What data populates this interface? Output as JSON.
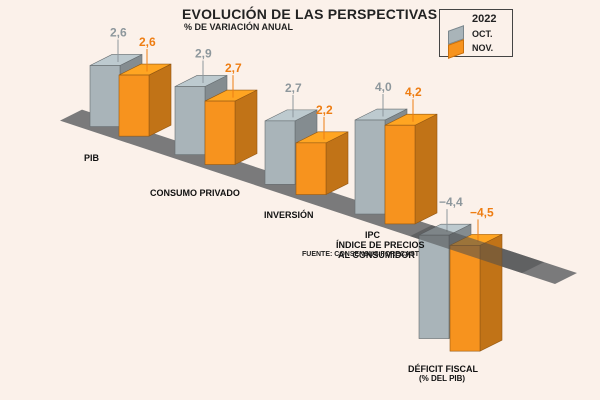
{
  "title": "EVOLUCIÓN DE LAS PERSPECTIVAS",
  "subtitle": "% DE VARIACIÓN ANUAL",
  "legend": {
    "year": "2022",
    "oct": "OCT.",
    "nov": "NOV."
  },
  "source": "FUENTE: CONSENSUS FORECAST",
  "colors": {
    "oct": "#a9b4b9",
    "nov": "#f7931e",
    "oct_label": "#8d979c",
    "nov_label": "#ee7d12",
    "background": "#fbf1ea"
  },
  "chart_data": {
    "type": "bar",
    "title": "EVOLUCIÓN DE LAS PERSPECTIVAS",
    "subtitle": "% DE VARIACIÓN ANUAL",
    "categories": [
      "PIB",
      "CONSUMO PRIVADO",
      "INVERSIÓN",
      "IPC ÍNDICE DE PRECIOS AL CONSUMIDOR",
      "DÉFICIT FISCAL (% DEL PIB)"
    ],
    "category_labels": [
      [
        "PIB"
      ],
      [
        "CONSUMO PRIVADO"
      ],
      [
        "INVERSIÓN"
      ],
      [
        "IPC",
        "ÍNDICE DE PRECIOS",
        "AL CONSUMIDOR"
      ],
      [
        "DÉFICIT FISCAL",
        "(% DEL PIB)"
      ]
    ],
    "series": [
      {
        "name": "OCT.",
        "values": [
          2.6,
          2.9,
          2.7,
          4.0,
          -4.4
        ],
        "labels": [
          "2,6",
          "2,9",
          "2,7",
          "4,0",
          "−4,4"
        ]
      },
      {
        "name": "NOV.",
        "values": [
          2.6,
          2.7,
          2.2,
          4.2,
          -4.5
        ],
        "labels": [
          "2,6",
          "2,7",
          "2,2",
          "4,2",
          "−4,5"
        ]
      }
    ],
    "legend_title": "2022",
    "legend_position": "top-right",
    "grid": false
  }
}
